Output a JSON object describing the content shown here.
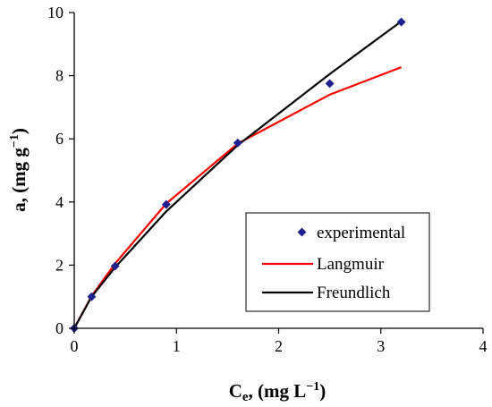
{
  "chart_data": {
    "type": "line",
    "title": "",
    "xlabel": {
      "main": "C",
      "sub": "e",
      "rest": ", (mg L",
      "sup": "−1",
      "close": ")"
    },
    "ylabel": {
      "main": "a, (mg g",
      "sup": "−1",
      "close": ")"
    },
    "xlim": [
      0,
      4
    ],
    "ylim": [
      0,
      10
    ],
    "xticks": [
      0,
      1,
      2,
      3,
      4
    ],
    "yticks": [
      0,
      2,
      4,
      6,
      8,
      10
    ],
    "grid": false,
    "legend_position": "bottom-right",
    "series": [
      {
        "name": "experimental",
        "style": "markers",
        "color": "#1f1f8f",
        "x": [
          0,
          0.17,
          0.4,
          0.9,
          1.6,
          2.5,
          3.2
        ],
        "y": [
          0,
          1.0,
          1.97,
          3.92,
          5.87,
          7.75,
          9.7
        ]
      },
      {
        "name": "Langmuir",
        "style": "line",
        "color": "#ff0000",
        "x": [
          0,
          0.17,
          0.4,
          0.9,
          1.6,
          2.5,
          3.2
        ],
        "y": [
          0,
          1.02,
          2.05,
          3.95,
          5.85,
          7.4,
          8.27
        ]
      },
      {
        "name": "Freundlich",
        "style": "line",
        "color": "#000000",
        "x": [
          0,
          0.17,
          0.4,
          0.9,
          1.6,
          2.5,
          3.2
        ],
        "y": [
          0,
          1.0,
          1.93,
          3.7,
          5.8,
          8.05,
          9.72
        ]
      }
    ]
  }
}
